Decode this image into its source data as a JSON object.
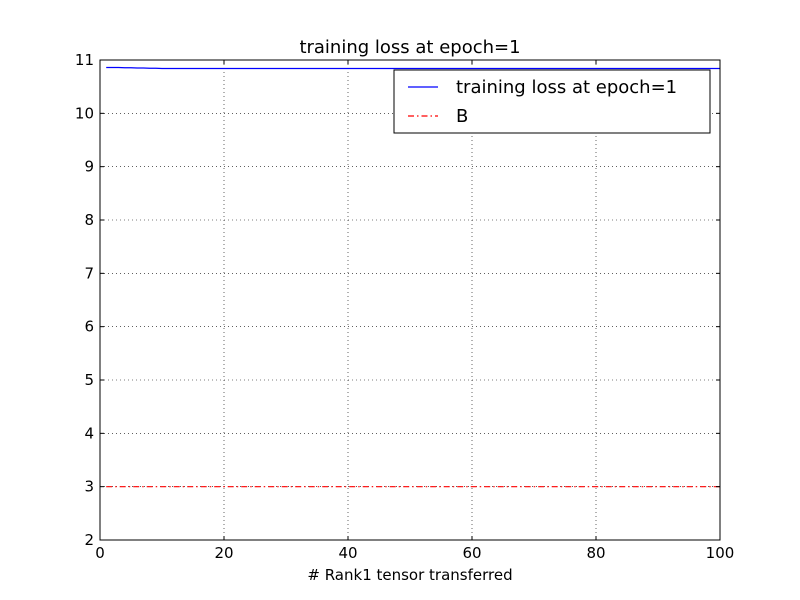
{
  "chart_data": {
    "type": "line",
    "title": "training loss at epoch=1",
    "xlabel": "# Rank1 tensor transferred",
    "ylabel": "",
    "xlim": [
      0,
      100
    ],
    "ylim": [
      2,
      11
    ],
    "xticks": [
      "0",
      "20",
      "40",
      "60",
      "80",
      "100"
    ],
    "yticks": [
      "2",
      "3",
      "4",
      "5",
      "6",
      "7",
      "8",
      "9",
      "10",
      "11"
    ],
    "grid": true,
    "legend_position": "top-right",
    "series": [
      {
        "name": "training loss at epoch=1",
        "color": "#0000ff",
        "style": "solid",
        "x": [
          1,
          2,
          3,
          4,
          5,
          6,
          7,
          8,
          9,
          10,
          15,
          20,
          30,
          40,
          50,
          60,
          70,
          80,
          90,
          100
        ],
        "y": [
          10.86,
          10.86,
          10.86,
          10.855,
          10.855,
          10.85,
          10.85,
          10.845,
          10.845,
          10.84,
          10.84,
          10.84,
          10.84,
          10.84,
          10.84,
          10.84,
          10.84,
          10.84,
          10.84,
          10.84
        ]
      },
      {
        "name": "B",
        "color": "#ff0000",
        "style": "dashdot",
        "x": [
          1,
          100
        ],
        "y": [
          3,
          3
        ]
      }
    ]
  }
}
